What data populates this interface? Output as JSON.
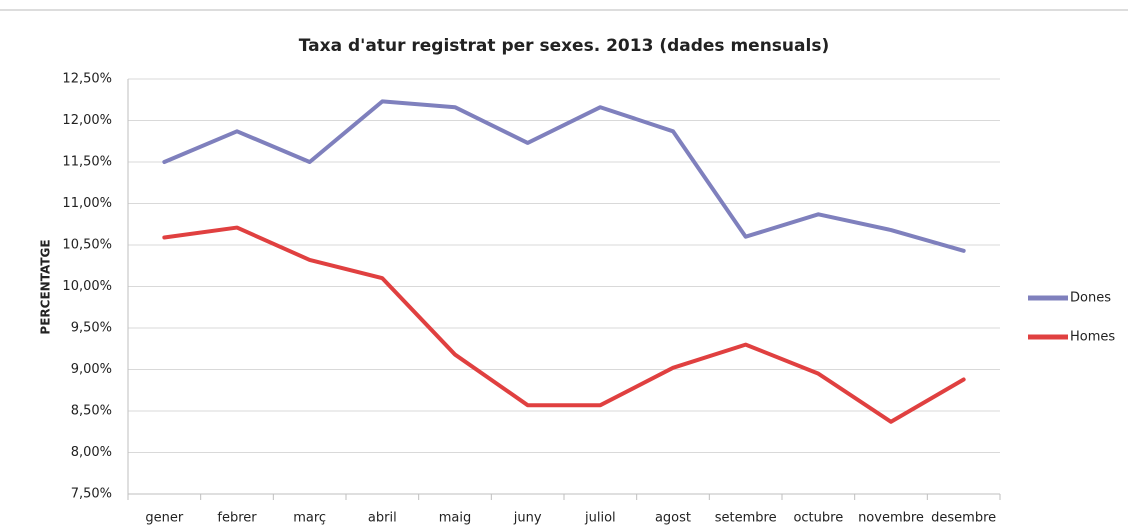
{
  "chart_data": {
    "type": "line",
    "title": "Taxa d'atur registrat per sexes. 2013 (dades mensuals)",
    "y_label": "PERCENTATGE",
    "categories": [
      "gener",
      "febrer",
      "març",
      "abril",
      "maig",
      "juny",
      "juliol",
      "agost",
      "setembre",
      "octubre",
      "novembre",
      "desembre"
    ],
    "series": [
      {
        "name": "Dones",
        "color": "#7f80bd",
        "values": [
          11.5,
          11.87,
          11.5,
          12.23,
          12.16,
          11.73,
          12.16,
          11.87,
          10.6,
          10.87,
          10.68,
          10.43
        ]
      },
      {
        "name": "Homes",
        "color": "#e04040",
        "values": [
          10.59,
          10.71,
          10.32,
          10.1,
          9.18,
          8.57,
          8.57,
          9.02,
          9.3,
          8.95,
          8.37,
          8.88
        ]
      }
    ],
    "ylim": [
      7.5,
      12.5
    ],
    "yticks": [
      {
        "value": 7.5,
        "label": "7,50%"
      },
      {
        "value": 8,
        "label": "8,00%"
      },
      {
        "value": 8.5,
        "label": "8,50%"
      },
      {
        "value": 9,
        "label": "9,00%"
      },
      {
        "value": 9.5,
        "label": "9,50%"
      },
      {
        "value": 10,
        "label": "10,00%"
      },
      {
        "value": 10.5,
        "label": "10,50%"
      },
      {
        "value": 11,
        "label": "11,00%"
      },
      {
        "value": 11.5,
        "label": "11,50%"
      },
      {
        "value": 12,
        "label": "12,00%"
      },
      {
        "value": 12.5,
        "label": "12,50%"
      }
    ],
    "grid": true,
    "legend": "right"
  }
}
